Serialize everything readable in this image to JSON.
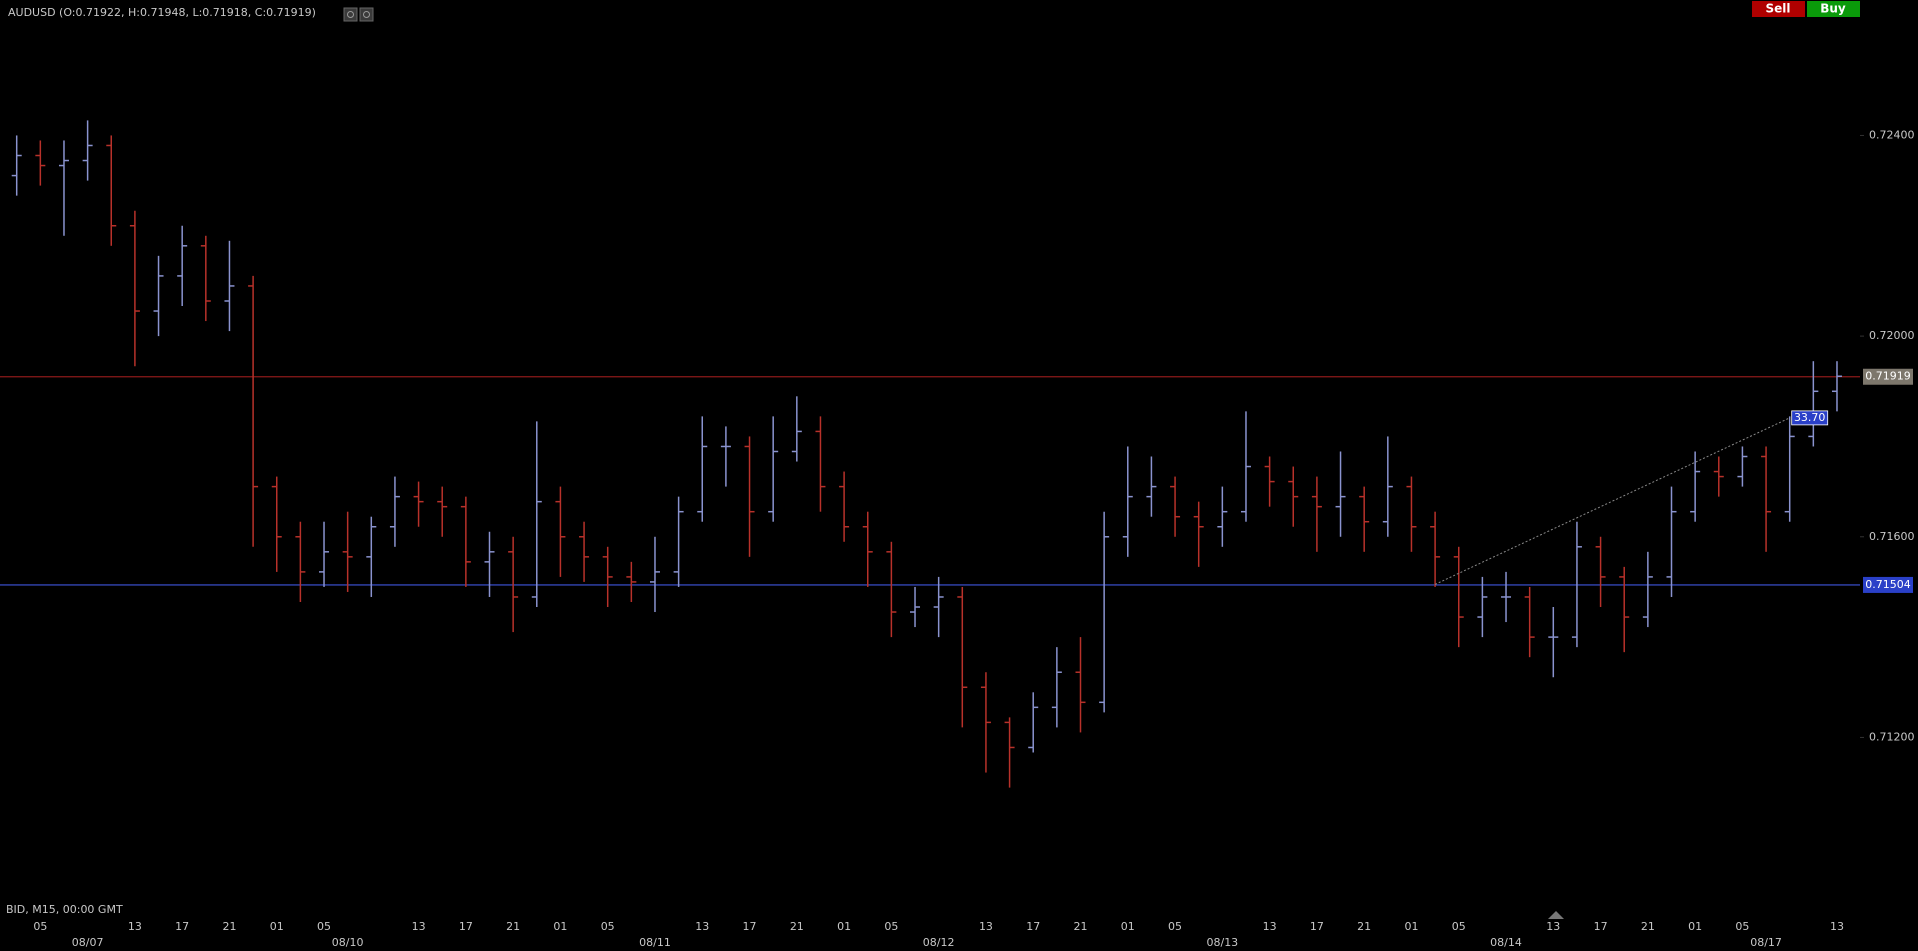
{
  "header": {
    "buttons": [
      "Sell",
      "Buy"
    ]
  },
  "footer": "BID, M15, 00:00 GMT",
  "chart_data": {
    "type": "ohlc",
    "title": "AUDUSD (O:0.71922, H:0.71948, L:0.71918, C:0.71919)",
    "categories": [
      null,
      "05",
      null,
      null,
      null,
      "13",
      null,
      "17",
      null,
      "21",
      null,
      "01",
      null,
      "05",
      null,
      null,
      null,
      "13",
      null,
      "17",
      null,
      "21",
      null,
      "01",
      null,
      "05",
      null,
      null,
      null,
      "13",
      null,
      "17",
      null,
      "21",
      null,
      "01",
      null,
      "05",
      null,
      null,
      null,
      "13",
      null,
      "17",
      null,
      "21",
      null,
      "01",
      null,
      "05",
      null,
      null,
      null,
      "13",
      null,
      "17",
      null,
      "21",
      null,
      "01",
      null,
      "05",
      null,
      null,
      null,
      "13",
      null,
      "17",
      null,
      "21",
      null,
      "01",
      null,
      "05",
      null,
      null,
      null,
      "13"
    ],
    "date_labels": [
      null,
      null,
      null,
      "08/07",
      null,
      null,
      null,
      null,
      null,
      null,
      null,
      null,
      null,
      null,
      "08/10",
      null,
      null,
      null,
      null,
      null,
      null,
      null,
      null,
      null,
      null,
      null,
      null,
      "08/11",
      null,
      null,
      null,
      null,
      null,
      null,
      null,
      null,
      null,
      null,
      null,
      "08/12",
      null,
      null,
      null,
      null,
      null,
      null,
      null,
      null,
      null,
      null,
      null,
      "08/13",
      null,
      null,
      null,
      null,
      null,
      null,
      null,
      null,
      null,
      null,
      null,
      "08/14",
      null,
      null,
      null,
      null,
      null,
      null,
      null,
      null,
      null,
      null,
      "08/17",
      null,
      null,
      null
    ],
    "open": [
      0.7232,
      0.7236,
      0.7234,
      0.7235,
      0.7238,
      0.7222,
      0.7205,
      0.7212,
      0.7218,
      0.7207,
      0.721,
      0.717,
      0.716,
      0.7153,
      0.7157,
      0.7156,
      0.7162,
      0.7168,
      0.7167,
      0.7166,
      0.7155,
      0.7157,
      0.7148,
      0.7167,
      0.716,
      0.7156,
      0.7152,
      0.7151,
      0.7153,
      0.7165,
      0.7178,
      0.7178,
      0.7165,
      0.7177,
      0.7181,
      0.717,
      0.7162,
      0.7157,
      0.7145,
      0.7146,
      0.7148,
      0.713,
      0.7123,
      0.7118,
      0.7126,
      0.7133,
      0.7127,
      0.716,
      0.7168,
      0.717,
      0.7164,
      0.7162,
      0.7165,
      0.7174,
      0.7171,
      0.7168,
      0.7166,
      0.7168,
      0.7163,
      0.717,
      0.7162,
      0.7156,
      0.7144,
      0.7148,
      0.7148,
      0.714,
      0.714,
      0.7158,
      0.7152,
      0.7144,
      0.7152,
      0.7165,
      0.7173,
      0.7172,
      0.7176,
      0.7165,
      0.718,
      0.7189
    ],
    "high": [
      0.724,
      0.7239,
      0.7239,
      0.7243,
      0.724,
      0.7225,
      0.7216,
      0.7222,
      0.722,
      0.7219,
      0.7212,
      0.7172,
      0.7163,
      0.7163,
      0.7165,
      0.7164,
      0.7172,
      0.7171,
      0.717,
      0.7168,
      0.7161,
      0.716,
      0.7183,
      0.717,
      0.7163,
      0.7158,
      0.7155,
      0.716,
      0.7168,
      0.7184,
      0.7182,
      0.718,
      0.7184,
      0.7188,
      0.7184,
      0.7173,
      0.7165,
      0.7159,
      0.715,
      0.7152,
      0.715,
      0.7133,
      0.7124,
      0.7129,
      0.7138,
      0.714,
      0.7165,
      0.7178,
      0.7176,
      0.7172,
      0.7167,
      0.717,
      0.7185,
      0.7176,
      0.7174,
      0.7172,
      0.7177,
      0.717,
      0.718,
      0.7172,
      0.7165,
      0.7158,
      0.7152,
      0.7153,
      0.715,
      0.7146,
      0.7163,
      0.716,
      0.7154,
      0.7157,
      0.717,
      0.7177,
      0.7176,
      0.7178,
      0.7178,
      0.7184,
      0.7195,
      0.7195
    ],
    "low": [
      0.7228,
      0.723,
      0.722,
      0.7231,
      0.7218,
      0.7194,
      0.72,
      0.7206,
      0.7203,
      0.7201,
      0.7158,
      0.7153,
      0.7147,
      0.715,
      0.7149,
      0.7148,
      0.7158,
      0.7162,
      0.716,
      0.715,
      0.7148,
      0.7141,
      0.7146,
      0.7152,
      0.7151,
      0.7146,
      0.7147,
      0.7145,
      0.715,
      0.7163,
      0.717,
      0.7156,
      0.7163,
      0.7175,
      0.7165,
      0.7159,
      0.715,
      0.714,
      0.7142,
      0.714,
      0.7122,
      0.7113,
      0.711,
      0.7117,
      0.7122,
      0.7121,
      0.7125,
      0.7156,
      0.7164,
      0.716,
      0.7154,
      0.7158,
      0.7163,
      0.7166,
      0.7162,
      0.7157,
      0.716,
      0.7157,
      0.716,
      0.7157,
      0.715,
      0.7138,
      0.714,
      0.7143,
      0.7136,
      0.7132,
      0.7138,
      0.7146,
      0.7137,
      0.7142,
      0.7148,
      0.7163,
      0.7168,
      0.717,
      0.7157,
      0.7163,
      0.7178,
      0.7185
    ],
    "close": [
      0.7236,
      0.7234,
      0.7235,
      0.7238,
      0.7222,
      0.7205,
      0.7212,
      0.7218,
      0.7207,
      0.721,
      0.717,
      0.716,
      0.7153,
      0.7157,
      0.7156,
      0.7162,
      0.7168,
      0.7167,
      0.7166,
      0.7155,
      0.7157,
      0.7148,
      0.7167,
      0.716,
      0.7156,
      0.7152,
      0.7151,
      0.7153,
      0.7165,
      0.7178,
      0.7178,
      0.7165,
      0.7177,
      0.7181,
      0.717,
      0.7162,
      0.7157,
      0.7145,
      0.7146,
      0.7148,
      0.713,
      0.7123,
      0.7118,
      0.7126,
      0.7133,
      0.7127,
      0.716,
      0.7168,
      0.717,
      0.7164,
      0.7162,
      0.7165,
      0.7174,
      0.7171,
      0.7168,
      0.7166,
      0.7168,
      0.7163,
      0.717,
      0.7162,
      0.7156,
      0.7144,
      0.7148,
      0.7148,
      0.714,
      0.714,
      0.7158,
      0.7152,
      0.7144,
      0.7152,
      0.7165,
      0.7173,
      0.7172,
      0.7176,
      0.7165,
      0.718,
      0.7189,
      0.7192
    ],
    "up_color": "#8a93cf",
    "down_color": "#b8312a",
    "ylim": [
      0.7086,
      0.7267
    ],
    "yticks": [
      {
        "value": 0.712,
        "label": "0.71200"
      },
      {
        "value": 0.716,
        "label": "0.71600"
      },
      {
        "value": 0.72,
        "label": "0.72000"
      },
      {
        "value": 0.724,
        "label": "0.72400"
      }
    ],
    "grid": false,
    "levels": [
      {
        "value": 0.71919,
        "label": "0.71919",
        "color": "#8b1a1a",
        "tag_color": "#7d776c"
      },
      {
        "value": 0.71504,
        "label": "0.71504",
        "color": "#3346b5",
        "tag_color": "#2a40c8"
      }
    ],
    "trendline": {
      "x_index": [
        60,
        75
      ],
      "values": [
        0.71505,
        0.71837
      ],
      "label": "33.70",
      "color": "#8a8a8a",
      "tag_color": "#2a40c8"
    }
  }
}
